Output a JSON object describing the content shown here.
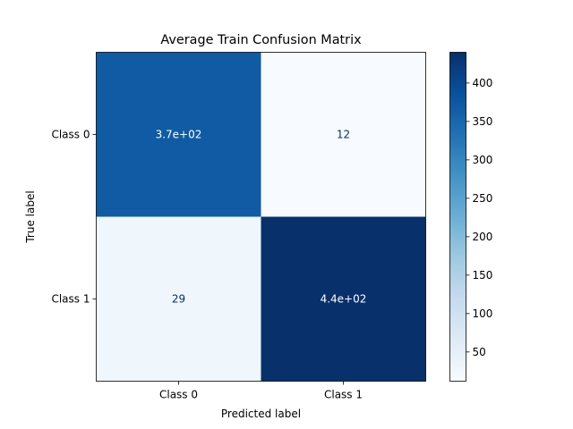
{
  "chart_data": {
    "type": "heatmap",
    "title": "Average Train Confusion Matrix",
    "xlabel": "Predicted label",
    "ylabel": "True label",
    "x_categories": [
      "Class 0",
      "Class 1"
    ],
    "y_categories": [
      "Class 0",
      "Class 1"
    ],
    "values": [
      [
        370,
        12
      ],
      [
        29,
        440
      ]
    ],
    "cell_labels": [
      [
        "3.7e+02",
        "12"
      ],
      [
        "29",
        "4.4e+02"
      ]
    ],
    "colormap": "Blues",
    "colorbar": {
      "vmin": 12,
      "vmax": 440,
      "ticks": [
        50,
        100,
        150,
        200,
        250,
        300,
        350,
        400
      ],
      "tick_labels": [
        "50",
        "100",
        "150",
        "200",
        "250",
        "300",
        "350",
        "400"
      ]
    },
    "grid": false,
    "legend": "colorbar-right"
  }
}
